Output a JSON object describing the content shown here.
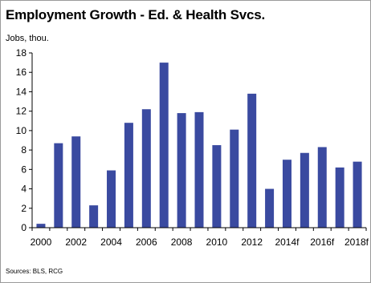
{
  "chart_data": {
    "type": "bar",
    "title": "Employment Growth - Ed. & Health Svcs.",
    "ylabel": "Jobs, thou.",
    "xlabel": "",
    "source": "Sources: BLS, RCG",
    "categories": [
      "2000",
      "2001",
      "2002",
      "2003",
      "2004",
      "2005",
      "2006",
      "2007",
      "2008",
      "2009",
      "2010",
      "2011",
      "2012",
      "2013",
      "2014f",
      "2015f",
      "2016f",
      "2017f",
      "2018f"
    ],
    "x_tick_labels": [
      "2000",
      "2002",
      "2004",
      "2006",
      "2008",
      "2010",
      "2012",
      "2014f",
      "2016f",
      "2018f"
    ],
    "values": [
      0.4,
      8.7,
      9.4,
      2.3,
      5.9,
      10.8,
      12.2,
      17.0,
      11.8,
      11.9,
      8.5,
      10.1,
      13.8,
      4.0,
      7.0,
      7.7,
      8.3,
      6.2,
      6.8
    ],
    "ylim": [
      0,
      18
    ],
    "y_ticks": [
      0,
      2,
      4,
      6,
      8,
      10,
      12,
      14,
      16,
      18
    ],
    "bar_color": "#3a4aa0",
    "grid": false,
    "legend": "none"
  }
}
